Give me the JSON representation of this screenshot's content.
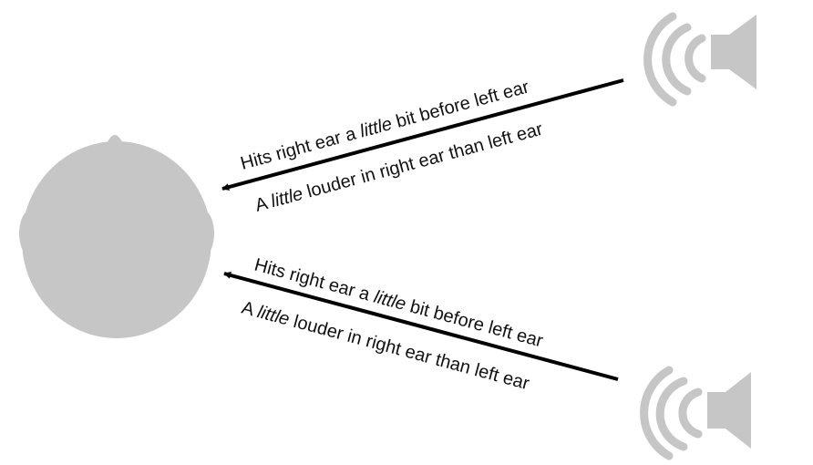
{
  "colors": {
    "shape_gray": "#c6c6c6",
    "arrow": "#000000",
    "text": "#111111",
    "background": "#ffffff"
  },
  "icons": {
    "head": "head-top-view-icon",
    "speaker": "speaker-sound-waves-icon"
  },
  "upper_arrow": {
    "line1": {
      "pre": "Hits right ear a ",
      "em": "little",
      "post": " bit before left ear"
    },
    "line2": {
      "pre": "A ",
      "em": "little",
      "post": " louder in right ear than left ear"
    }
  },
  "lower_arrow": {
    "line1": {
      "pre": "Hits right ear a ",
      "em": "little",
      "post": " bit before left ear"
    },
    "line2": {
      "pre": "A ",
      "em": "little",
      "post": " louder in right ear than left ear"
    }
  }
}
